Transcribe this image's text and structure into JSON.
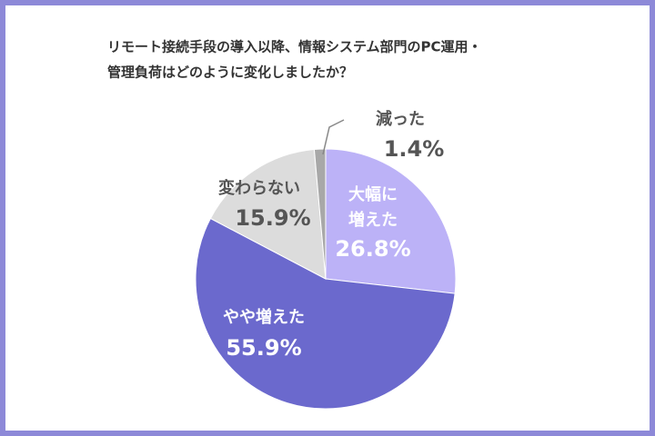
{
  "chart_data": {
    "type": "pie",
    "title": [
      "リモート接続手段の導入以降、情報システム部門のPC運用・",
      "管理負荷はどのように変化しましたか？"
    ],
    "categories": [
      [
        "大幅に",
        "増えた"
      ],
      [
        "やや増えた"
      ],
      [
        "変わらない"
      ],
      [
        "減った"
      ]
    ],
    "values": [
      26.8,
      55.9,
      15.9,
      1.4
    ],
    "value_labels": [
      "26.8%",
      "55.9%",
      "15.9%",
      "1.4%"
    ],
    "colors": [
      "#bcb2f7",
      "#6b69cd",
      "#dcdcdc",
      "#a8a8a8"
    ]
  }
}
